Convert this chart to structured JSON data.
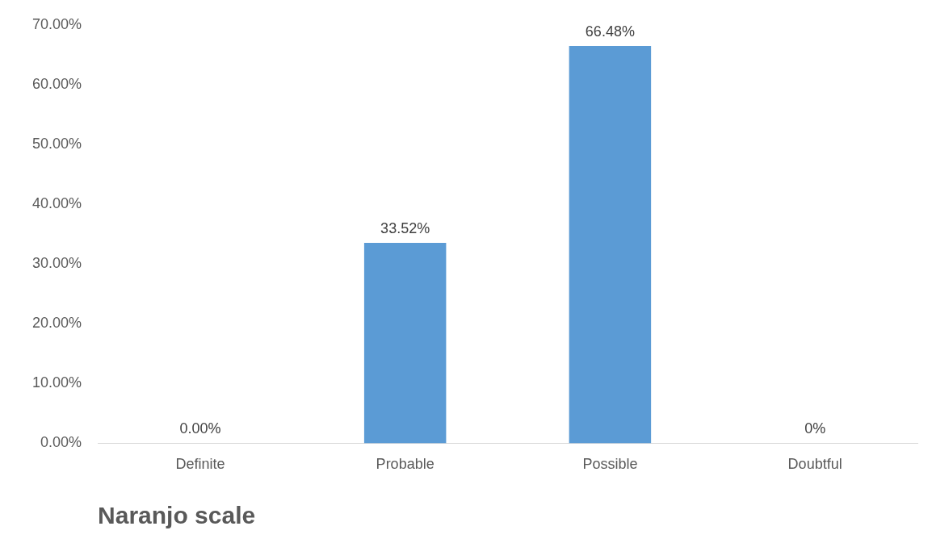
{
  "chart_data": {
    "type": "bar",
    "xlabel": "Naranjo scale",
    "categories": [
      "Definite",
      "Probable",
      "Possible",
      "Doubtful"
    ],
    "values": [
      0,
      33.52,
      66.48,
      0
    ],
    "value_labels": [
      "0.00%",
      "33.52%",
      "66.48%",
      "0%"
    ],
    "color": "#5b9bd5",
    "ylim": [
      0,
      70
    ],
    "yticks": [
      {
        "value": 0,
        "label": "0.00%"
      },
      {
        "value": 10,
        "label": "10.00%"
      },
      {
        "value": 20,
        "label": "20.00%"
      },
      {
        "value": 30,
        "label": "30.00%"
      },
      {
        "value": 40,
        "label": "40.00%"
      },
      {
        "value": 50,
        "label": "50.00%"
      },
      {
        "value": 60,
        "label": "60.00%"
      },
      {
        "value": 70,
        "label": "70.00%"
      }
    ],
    "grid": false,
    "legend": false
  }
}
